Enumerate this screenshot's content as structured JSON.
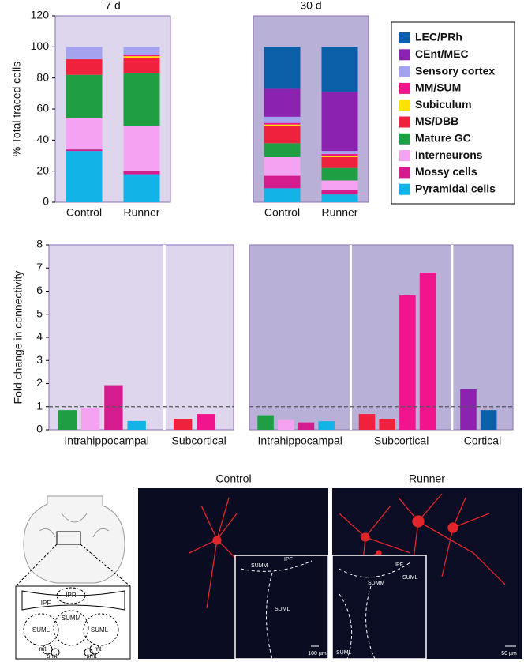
{
  "chart_data": [
    {
      "type": "stacked_bar",
      "title": "7 d",
      "y_label": "% Total traced cells",
      "categories": [
        "Control",
        "Runner"
      ],
      "ylim": [
        0,
        120
      ],
      "yticks": [
        0,
        20,
        40,
        60,
        80,
        100,
        120
      ],
      "legend": "right",
      "series": [
        {
          "name": "Pyramidal cells",
          "color": "#12b3e6",
          "values": [
            33,
            18
          ]
        },
        {
          "name": "Mossy cells",
          "color": "#d41c8e",
          "values": [
            1,
            2
          ]
        },
        {
          "name": "Interneurons",
          "color": "#f6a2f2",
          "values": [
            20,
            29
          ]
        },
        {
          "name": "Mature GC",
          "color": "#1f9e44",
          "values": [
            28,
            34
          ]
        },
        {
          "name": "MS/DBB",
          "color": "#f0213d",
          "values": [
            10,
            10
          ]
        },
        {
          "name": "Subiculum",
          "color": "#ffe100",
          "values": [
            0,
            1
          ]
        },
        {
          "name": "MM/SUM",
          "color": "#f0158d",
          "values": [
            0,
            1
          ]
        },
        {
          "name": "Sensory cortex",
          "color": "#a3a3f0",
          "values": [
            8,
            5
          ]
        },
        {
          "name": "CEnt/MEC",
          "color": "#8b23b0",
          "values": [
            0,
            0
          ]
        },
        {
          "name": "LEC/PRh",
          "color": "#0b5ea8",
          "values": [
            0,
            0
          ]
        }
      ]
    },
    {
      "type": "stacked_bar",
      "title": "30 d",
      "categories": [
        "Control",
        "Runner"
      ],
      "ylim": [
        0,
        120
      ],
      "series": [
        {
          "color": "#12b3e6",
          "values": [
            9,
            5
          ]
        },
        {
          "color": "#d41c8e",
          "values": [
            8,
            3
          ]
        },
        {
          "color": "#f6a2f2",
          "values": [
            12,
            6
          ]
        },
        {
          "color": "#1f9e44",
          "values": [
            9,
            8
          ]
        },
        {
          "color": "#f0213d",
          "values": [
            11,
            7
          ]
        },
        {
          "color": "#ffe100",
          "values": [
            1,
            1
          ]
        },
        {
          "color": "#f0158d",
          "values": [
            1,
            1
          ]
        },
        {
          "color": "#a3a3f0",
          "values": [
            4,
            2
          ]
        },
        {
          "color": "#8b23b0",
          "values": [
            18,
            38
          ]
        },
        {
          "color": "#0b5ea8",
          "values": [
            27,
            29
          ]
        }
      ]
    },
    {
      "type": "grouped_bar",
      "y_label": "Fold change in connectivity",
      "ylim": [
        0,
        8
      ],
      "yticks": [
        0,
        1,
        2,
        3,
        4,
        5,
        6,
        7,
        8
      ],
      "reference_line": 1,
      "groups": [
        {
          "label": "Intrahippocampal",
          "values": [
            0.85,
            0.95,
            1.93,
            0.38
          ],
          "colors": [
            "#1f9e44",
            "#f6a2f2",
            "#d41c8e",
            "#12b3e6"
          ]
        },
        {
          "label": "Subcortical",
          "values": [
            0.47,
            0.68
          ],
          "colors": [
            "#f0213d",
            "#f0158d"
          ]
        }
      ]
    },
    {
      "type": "grouped_bar",
      "ylim": [
        0,
        8
      ],
      "reference_line": 1,
      "groups": [
        {
          "label": "Intrahippocampal",
          "values": [
            0.63,
            0.42,
            0.32,
            0.37
          ],
          "colors": [
            "#1f9e44",
            "#f6a2f2",
            "#d41c8e",
            "#12b3e6"
          ]
        },
        {
          "label": "Subcortical",
          "values": [
            0.68,
            0.48,
            5.82,
            6.8
          ],
          "colors": [
            "#f0213d",
            "#f0213d",
            "#f0158d",
            "#f0158d"
          ]
        },
        {
          "label": "Cortical",
          "values": [
            1.75,
            0.85
          ],
          "colors": [
            "#8b23b0",
            "#0b5ea8"
          ]
        }
      ]
    }
  ],
  "figure": {
    "diagram": {
      "labels": [
        "IPR",
        "IPF",
        "SUMM",
        "SUML",
        "SUML",
        "mt",
        "smt",
        "mt",
        "smt"
      ]
    },
    "images": [
      {
        "title": "Control",
        "inset_labels": [
          "SUMM",
          "IPF",
          "SUML"
        ],
        "scale_bar": "100 µm"
      },
      {
        "title": "Runner",
        "inset_labels": [
          "IPF",
          "SUMM",
          "SUML",
          "SUML"
        ],
        "scale_bar": "50 µm"
      }
    ]
  }
}
